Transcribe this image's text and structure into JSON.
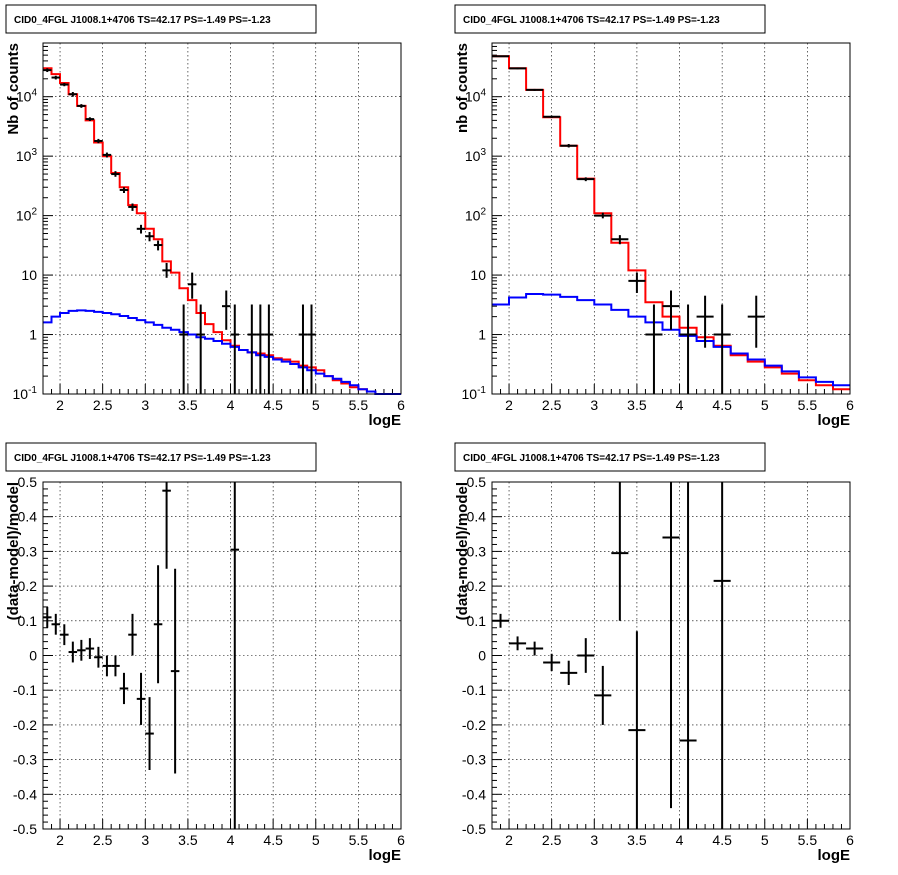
{
  "chart_data": [
    {
      "type": "histogram",
      "title": "CID0_4FGL J1008.1+4706 TS=42.17 PS=-1.49 PS=-1.23",
      "xlabel": "logE",
      "ylabel": "Nb of counts",
      "xlim": [
        1.8,
        6.0
      ],
      "ylim": [
        0.1,
        80000
      ],
      "ylog": true,
      "grid": true,
      "xticks": [
        "2",
        "2.5",
        "3",
        "3.5",
        "4",
        "4.5",
        "5",
        "5.5",
        "6"
      ],
      "yticks": [
        "10^-1",
        "1",
        "10",
        "10^2",
        "10^3",
        "10^4"
      ],
      "bin_edges": [
        1.8,
        1.9,
        2.0,
        2.1,
        2.2,
        2.3,
        2.4,
        2.5,
        2.6,
        2.7,
        2.8,
        2.9,
        3.0,
        3.1,
        3.2,
        3.3,
        3.4,
        3.5,
        3.6,
        3.7,
        3.8,
        3.9,
        4.0,
        4.1,
        4.2,
        4.3,
        4.4,
        4.5,
        4.6,
        4.7,
        4.8,
        4.9,
        5.0,
        5.1,
        5.2,
        5.3,
        5.4,
        5.5,
        5.6,
        5.7,
        5.8,
        5.9,
        6.0
      ],
      "series": [
        {
          "name": "",
          "color": "#ff0000",
          "style": "step",
          "values": [
            30000,
            24000,
            17000,
            11000,
            7000,
            4000,
            1700,
            1000,
            520,
            300,
            150,
            110,
            60,
            40,
            17,
            11,
            6,
            3.8,
            2.3,
            1.5,
            1.1,
            0.8,
            0.65,
            0.55,
            0.5,
            0.48,
            0.45,
            0.4,
            0.38,
            0.35,
            0.3,
            0.28,
            0.25,
            0.2,
            0.17,
            0.15,
            0.13,
            0.12,
            0.11,
            0.1,
            0.1,
            0.1
          ]
        },
        {
          "name": "",
          "color": "#0000ff",
          "style": "step",
          "values": [
            1.6,
            2.0,
            2.3,
            2.5,
            2.55,
            2.5,
            2.4,
            2.3,
            2.2,
            2.05,
            1.9,
            1.75,
            1.6,
            1.45,
            1.3,
            1.2,
            1.1,
            1.0,
            0.9,
            0.85,
            0.78,
            0.7,
            0.62,
            0.55,
            0.5,
            0.45,
            0.42,
            0.38,
            0.35,
            0.32,
            0.28,
            0.25,
            0.22,
            0.2,
            0.18,
            0.16,
            0.14,
            0.12,
            0.11,
            0.1,
            0.1,
            0.1
          ]
        }
      ],
      "points": [
        {
          "x": 1.85,
          "y": 28000,
          "xerr": 0.05,
          "ylo": 26000,
          "yhi": 30000
        },
        {
          "x": 1.95,
          "y": 21000,
          "xerr": 0.05,
          "ylo": 19500,
          "yhi": 22500
        },
        {
          "x": 2.05,
          "y": 16000,
          "xerr": 0.05,
          "ylo": 15000,
          "yhi": 17000
        },
        {
          "x": 2.15,
          "y": 11000,
          "xerr": 0.05,
          "ylo": 10000,
          "yhi": 12000
        },
        {
          "x": 2.25,
          "y": 7000,
          "xerr": 0.05,
          "ylo": 6500,
          "yhi": 7500
        },
        {
          "x": 2.35,
          "y": 4200,
          "xerr": 0.05,
          "ylo": 3900,
          "yhi": 4500
        },
        {
          "x": 2.45,
          "y": 1800,
          "xerr": 0.05,
          "ylo": 1650,
          "yhi": 1950
        },
        {
          "x": 2.55,
          "y": 1050,
          "xerr": 0.05,
          "ylo": 950,
          "yhi": 1150
        },
        {
          "x": 2.65,
          "y": 500,
          "xerr": 0.05,
          "ylo": 450,
          "yhi": 560
        },
        {
          "x": 2.75,
          "y": 270,
          "xerr": 0.05,
          "ylo": 240,
          "yhi": 300
        },
        {
          "x": 2.85,
          "y": 140,
          "xerr": 0.05,
          "ylo": 120,
          "yhi": 160
        },
        {
          "x": 2.95,
          "y": 60,
          "xerr": 0.05,
          "ylo": 50,
          "yhi": 70
        },
        {
          "x": 3.05,
          "y": 45,
          "xerr": 0.05,
          "ylo": 37,
          "yhi": 53
        },
        {
          "x": 3.15,
          "y": 32,
          "xerr": 0.05,
          "ylo": 26,
          "yhi": 38
        },
        {
          "x": 3.25,
          "y": 12,
          "xerr": 0.05,
          "ylo": 9,
          "yhi": 16
        },
        {
          "x": 3.55,
          "y": 7,
          "xerr": 0.05,
          "ylo": 4,
          "yhi": 11
        },
        {
          "x": 3.45,
          "y": 1,
          "xerr": 0.05,
          "ylo": 0.1,
          "yhi": 3.2
        },
        {
          "x": 3.65,
          "y": 1,
          "xerr": 0.05,
          "ylo": 0.1,
          "yhi": 3.2
        },
        {
          "x": 3.95,
          "y": 3,
          "xerr": 0.05,
          "ylo": 1.2,
          "yhi": 5.5
        },
        {
          "x": 4.05,
          "y": 1,
          "xerr": 0.05,
          "ylo": 0.1,
          "yhi": 3.2
        },
        {
          "x": 4.25,
          "y": 1,
          "xerr": 0.05,
          "ylo": 0.1,
          "yhi": 3.2
        },
        {
          "x": 4.35,
          "y": 1,
          "xerr": 0.05,
          "ylo": 0.1,
          "yhi": 3.2
        },
        {
          "x": 4.45,
          "y": 1,
          "xerr": 0.05,
          "ylo": 0.1,
          "yhi": 3.2
        },
        {
          "x": 4.85,
          "y": 1,
          "xerr": 0.05,
          "ylo": 0.1,
          "yhi": 3.2
        },
        {
          "x": 4.95,
          "y": 1,
          "xerr": 0.05,
          "ylo": 0.1,
          "yhi": 3.2
        }
      ]
    },
    {
      "type": "histogram",
      "title": "CID0_4FGL J1008.1+4706 TS=42.17 PS=-1.49 PS=-1.23",
      "xlabel": "logE",
      "ylabel": "nb of counts",
      "xlim": [
        1.8,
        6.0
      ],
      "ylim": [
        0.1,
        80000
      ],
      "ylog": true,
      "grid": true,
      "xticks": [
        "2",
        "2.5",
        "3",
        "3.5",
        "4",
        "4.5",
        "5",
        "5.5",
        "6"
      ],
      "yticks": [
        "10^-1",
        "1",
        "10",
        "10^2",
        "10^3",
        "10^4"
      ],
      "bin_edges": [
        1.8,
        2.0,
        2.2,
        2.4,
        2.6,
        2.8,
        3.0,
        3.2,
        3.4,
        3.6,
        3.8,
        4.0,
        4.2,
        4.4,
        4.6,
        4.8,
        5.0,
        5.2,
        5.4,
        5.6,
        5.8,
        6.0
      ],
      "series": [
        {
          "name": "",
          "color": "#ff0000",
          "style": "step",
          "values": [
            48000,
            30000,
            13000,
            4500,
            1500,
            420,
            110,
            35,
            12,
            3.5,
            2.0,
            1.3,
            0.9,
            0.65,
            0.45,
            0.35,
            0.28,
            0.22,
            0.17,
            0.14,
            0.12
          ]
        },
        {
          "name": "",
          "color": "#0000ff",
          "style": "step",
          "values": [
            3.2,
            4.2,
            4.8,
            4.7,
            4.3,
            3.8,
            3.2,
            2.6,
            2.0,
            1.6,
            1.2,
            0.95,
            0.78,
            0.62,
            0.48,
            0.38,
            0.3,
            0.24,
            0.19,
            0.16,
            0.14
          ]
        }
      ],
      "points": [
        {
          "x": 1.9,
          "y": 48000,
          "xerr": 0.1,
          "ylo": 47000,
          "yhi": 49000
        },
        {
          "x": 2.1,
          "y": 30000,
          "xerr": 0.1,
          "ylo": 29000,
          "yhi": 31000
        },
        {
          "x": 2.3,
          "y": 13000,
          "xerr": 0.1,
          "ylo": 12500,
          "yhi": 13500
        },
        {
          "x": 2.5,
          "y": 4600,
          "xerr": 0.1,
          "ylo": 4400,
          "yhi": 4800
        },
        {
          "x": 2.7,
          "y": 1500,
          "xerr": 0.1,
          "ylo": 1400,
          "yhi": 1600
        },
        {
          "x": 2.9,
          "y": 410,
          "xerr": 0.1,
          "ylo": 380,
          "yhi": 440
        },
        {
          "x": 3.1,
          "y": 100,
          "xerr": 0.1,
          "ylo": 90,
          "yhi": 112
        },
        {
          "x": 3.3,
          "y": 40,
          "xerr": 0.1,
          "ylo": 33,
          "yhi": 47
        },
        {
          "x": 3.5,
          "y": 8,
          "xerr": 0.1,
          "ylo": 5,
          "yhi": 11
        },
        {
          "x": 3.7,
          "y": 1,
          "xerr": 0.1,
          "ylo": 0.1,
          "yhi": 3.2
        },
        {
          "x": 3.9,
          "y": 3,
          "xerr": 0.1,
          "ylo": 1.2,
          "yhi": 5.5
        },
        {
          "x": 4.1,
          "y": 1,
          "xerr": 0.1,
          "ylo": 0.1,
          "yhi": 3.2
        },
        {
          "x": 4.3,
          "y": 2,
          "xerr": 0.1,
          "ylo": 0.6,
          "yhi": 4.5
        },
        {
          "x": 4.5,
          "y": 1,
          "xerr": 0.1,
          "ylo": 0.1,
          "yhi": 3.2
        },
        {
          "x": 4.9,
          "y": 2,
          "xerr": 0.1,
          "ylo": 0.6,
          "yhi": 4.5
        }
      ]
    },
    {
      "type": "scatter",
      "title": "CID0_4FGL J1008.1+4706 TS=42.17 PS=-1.49 PS=-1.23",
      "xlabel": "logE",
      "ylabel": "(data-model)/model",
      "xlim": [
        1.8,
        6.0
      ],
      "ylim": [
        -0.5,
        0.5
      ],
      "ylog": false,
      "grid": true,
      "xticks": [
        "2",
        "2.5",
        "3",
        "3.5",
        "4",
        "4.5",
        "5",
        "5.5",
        "6"
      ],
      "yticks": [
        "-0.5",
        "-0.4",
        "-0.3",
        "-0.2",
        "-0.1",
        "0",
        "0.1",
        "0.2",
        "0.3",
        "0.4",
        "0.5"
      ],
      "points": [
        {
          "x": 1.85,
          "y": 0.11,
          "xerr": 0.05,
          "ylo": 0.08,
          "yhi": 0.14
        },
        {
          "x": 1.95,
          "y": 0.09,
          "xerr": 0.05,
          "ylo": 0.06,
          "yhi": 0.12
        },
        {
          "x": 2.05,
          "y": 0.06,
          "xerr": 0.05,
          "ylo": 0.03,
          "yhi": 0.09
        },
        {
          "x": 2.15,
          "y": 0.01,
          "xerr": 0.05,
          "ylo": -0.02,
          "yhi": 0.04
        },
        {
          "x": 2.25,
          "y": 0.015,
          "xerr": 0.05,
          "ylo": -0.015,
          "yhi": 0.045
        },
        {
          "x": 2.35,
          "y": 0.02,
          "xerr": 0.05,
          "ylo": -0.01,
          "yhi": 0.05
        },
        {
          "x": 2.45,
          "y": -0.005,
          "xerr": 0.05,
          "ylo": -0.035,
          "yhi": 0.025
        },
        {
          "x": 2.55,
          "y": -0.03,
          "xerr": 0.05,
          "ylo": -0.06,
          "yhi": 0.0
        },
        {
          "x": 2.65,
          "y": -0.03,
          "xerr": 0.05,
          "ylo": -0.06,
          "yhi": 0.0
        },
        {
          "x": 2.75,
          "y": -0.095,
          "xerr": 0.05,
          "ylo": -0.14,
          "yhi": -0.05
        },
        {
          "x": 2.85,
          "y": 0.06,
          "xerr": 0.05,
          "ylo": 0.0,
          "yhi": 0.12
        },
        {
          "x": 2.95,
          "y": -0.125,
          "xerr": 0.05,
          "ylo": -0.2,
          "yhi": -0.05
        },
        {
          "x": 3.05,
          "y": -0.225,
          "xerr": 0.05,
          "ylo": -0.33,
          "yhi": -0.12
        },
        {
          "x": 3.15,
          "y": 0.09,
          "xerr": 0.05,
          "ylo": -0.08,
          "yhi": 0.26
        },
        {
          "x": 3.25,
          "y": 0.475,
          "xerr": 0.05,
          "ylo": 0.25,
          "yhi": 0.5
        },
        {
          "x": 3.35,
          "y": -0.045,
          "xerr": 0.05,
          "ylo": -0.34,
          "yhi": 0.25
        },
        {
          "x": 4.05,
          "y": 0.305,
          "xerr": 0.05,
          "ylo": -0.5,
          "yhi": 0.5
        }
      ]
    },
    {
      "type": "scatter",
      "title": "CID0_4FGL J1008.1+4706 TS=42.17 PS=-1.49 PS=-1.23",
      "xlabel": "logE",
      "ylabel": "(data-model)/model",
      "xlim": [
        1.8,
        6.0
      ],
      "ylim": [
        -0.5,
        0.5
      ],
      "ylog": false,
      "grid": true,
      "xticks": [
        "2",
        "2.5",
        "3",
        "3.5",
        "4",
        "4.5",
        "5",
        "5.5",
        "6"
      ],
      "yticks": [
        "-0.5",
        "-0.4",
        "-0.3",
        "-0.2",
        "-0.1",
        "0",
        "0.1",
        "0.2",
        "0.3",
        "0.4",
        "0.5"
      ],
      "points": [
        {
          "x": 1.9,
          "y": 0.1,
          "xerr": 0.1,
          "ylo": 0.08,
          "yhi": 0.12
        },
        {
          "x": 2.1,
          "y": 0.035,
          "xerr": 0.1,
          "ylo": 0.015,
          "yhi": 0.055
        },
        {
          "x": 2.3,
          "y": 0.02,
          "xerr": 0.1,
          "ylo": 0.0,
          "yhi": 0.04
        },
        {
          "x": 2.5,
          "y": -0.02,
          "xerr": 0.1,
          "ylo": -0.045,
          "yhi": 0.005
        },
        {
          "x": 2.7,
          "y": -0.05,
          "xerr": 0.1,
          "ylo": -0.085,
          "yhi": -0.015
        },
        {
          "x": 2.9,
          "y": 0.0,
          "xerr": 0.1,
          "ylo": -0.05,
          "yhi": 0.05
        },
        {
          "x": 3.1,
          "y": -0.115,
          "xerr": 0.1,
          "ylo": -0.2,
          "yhi": -0.03
        },
        {
          "x": 3.3,
          "y": 0.295,
          "xerr": 0.1,
          "ylo": 0.1,
          "yhi": 0.5
        },
        {
          "x": 3.5,
          "y": -0.215,
          "xerr": 0.1,
          "ylo": -0.5,
          "yhi": 0.07
        },
        {
          "x": 3.9,
          "y": 0.34,
          "xerr": 0.1,
          "ylo": -0.44,
          "yhi": 0.5
        },
        {
          "x": 4.1,
          "y": -0.245,
          "xerr": 0.1,
          "ylo": -0.5,
          "yhi": 0.5
        },
        {
          "x": 4.5,
          "y": 0.215,
          "xerr": 0.1,
          "ylo": -0.5,
          "yhi": 0.5
        }
      ]
    }
  ]
}
